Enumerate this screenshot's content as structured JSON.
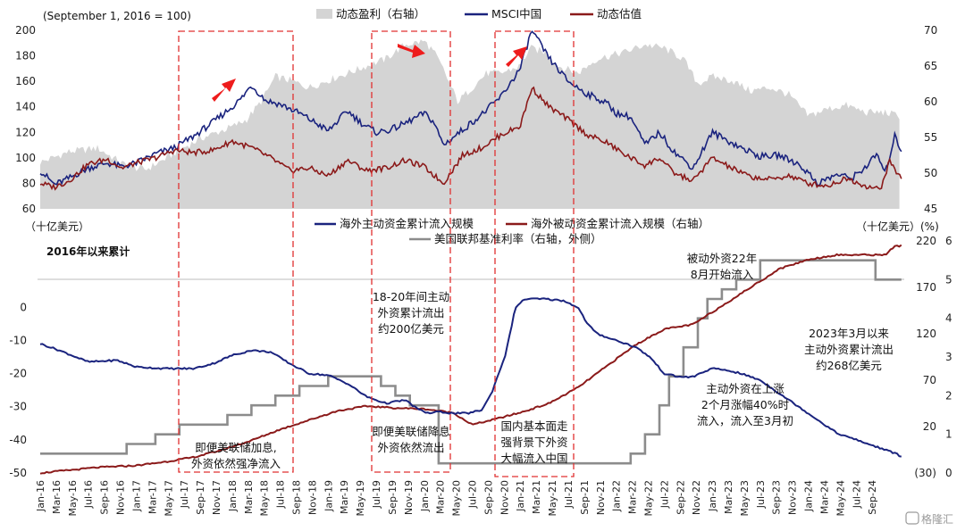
{
  "chart_data": [
    {
      "type": "line",
      "note_label": "(September 1, 2016 = 100)",
      "legend_placement": "top",
      "left_axis": {
        "ylim": [
          60,
          200
        ],
        "ticks": [
          60,
          80,
          100,
          120,
          140,
          160,
          180,
          200
        ]
      },
      "right_axis": {
        "ylim": [
          45,
          70
        ],
        "ticks": [
          45,
          50,
          55,
          60,
          65,
          70
        ]
      },
      "series": [
        {
          "name": "动态盈利（右轴）",
          "kind": "area",
          "axis": "right",
          "color": "#d4d4d4",
          "x": [
            2016.0,
            2016.3,
            2016.6,
            2016.9,
            2017.1,
            2017.3,
            2017.55,
            2017.7,
            2017.9,
            2018.0,
            2018.15,
            2018.3,
            2018.45,
            2018.6,
            2018.8,
            2019.0,
            2019.2,
            2019.4,
            2019.6,
            2019.8,
            2020.0,
            2020.1,
            2020.2,
            2020.35,
            2020.5,
            2020.65,
            2020.8,
            2021.0,
            2021.1,
            2021.25,
            2021.4,
            2021.6,
            2021.8,
            2021.95,
            2022.1,
            2022.3,
            2022.5,
            2022.7,
            2022.85,
            2023.0,
            2023.2,
            2023.4,
            2023.6,
            2023.8,
            2024.0,
            2024.2,
            2024.4,
            2024.6,
            2024.8,
            2024.95
          ],
          "values": [
            51.5,
            53,
            53.5,
            51,
            50.5,
            52,
            54,
            55,
            56,
            56.5,
            57.5,
            60,
            63.5,
            63,
            62,
            63,
            64,
            65,
            66,
            68,
            68.5,
            67,
            64.5,
            60,
            62,
            64,
            64,
            65,
            67.5,
            67,
            65,
            64,
            66,
            66.5,
            67,
            68,
            67.5,
            66,
            62.5,
            63.5,
            63,
            61.5,
            62,
            61,
            58,
            59,
            59.5,
            58.5,
            58.5,
            58
          ]
        },
        {
          "name": "MSCI中国",
          "kind": "line",
          "axis": "left",
          "color": "#1a237e",
          "x": [
            2016.0,
            2016.15,
            2016.3,
            2016.5,
            2016.7,
            2016.85,
            2017.0,
            2017.2,
            2017.4,
            2017.6,
            2017.8,
            2018.0,
            2018.1,
            2018.2,
            2018.35,
            2018.5,
            2018.7,
            2018.9,
            2019.0,
            2019.2,
            2019.35,
            2019.5,
            2019.65,
            2019.8,
            2020.0,
            2020.1,
            2020.2,
            2020.4,
            2020.6,
            2020.8,
            2021.0,
            2021.12,
            2021.3,
            2021.5,
            2021.7,
            2021.9,
            2022.0,
            2022.15,
            2022.3,
            2022.45,
            2022.6,
            2022.8,
            2023.0,
            2023.1,
            2023.3,
            2023.5,
            2023.7,
            2023.9,
            2024.0,
            2024.1,
            2024.3,
            2024.45,
            2024.6,
            2024.72,
            2024.8,
            2024.9,
            2024.97
          ],
          "values": [
            90,
            79,
            84,
            92,
            96,
            93,
            96,
            103,
            108,
            117,
            128,
            140,
            147,
            157,
            145,
            142,
            135,
            126,
            121,
            137,
            127,
            120,
            122,
            127,
            135,
            128,
            110,
            122,
            134,
            148,
            170,
            200,
            178,
            160,
            150,
            143,
            135,
            132,
            110,
            120,
            105,
            92,
            120,
            116,
            108,
            101,
            102,
            95,
            88,
            80,
            87,
            84,
            93,
            103,
            87,
            117,
            106
          ]
        },
        {
          "name": "动态估值",
          "kind": "line",
          "axis": "left",
          "color": "#8b1a1a",
          "x": [
            2016.0,
            2016.15,
            2016.3,
            2016.5,
            2016.7,
            2016.85,
            2017.0,
            2017.2,
            2017.4,
            2017.6,
            2017.8,
            2018.0,
            2018.2,
            2018.4,
            2018.6,
            2018.8,
            2019.0,
            2019.2,
            2019.4,
            2019.6,
            2019.8,
            2020.0,
            2020.2,
            2020.4,
            2020.6,
            2020.8,
            2021.0,
            2021.12,
            2021.3,
            2021.5,
            2021.7,
            2021.9,
            2022.1,
            2022.3,
            2022.45,
            2022.6,
            2022.8,
            2023.0,
            2023.2,
            2023.4,
            2023.6,
            2023.8,
            2024.0,
            2024.2,
            2024.4,
            2024.6,
            2024.75,
            2024.85,
            2024.92,
            2024.97
          ],
          "values": [
            80,
            77,
            82,
            95,
            99,
            92,
            96,
            100,
            106,
            104,
            106,
            113,
            108,
            100,
            90,
            92,
            86,
            98,
            90,
            92,
            98,
            93,
            80,
            102,
            108,
            118,
            125,
            155,
            140,
            130,
            118,
            112,
            102,
            94,
            100,
            88,
            82,
            100,
            92,
            85,
            83,
            86,
            80,
            78,
            84,
            78,
            75,
            98,
            88,
            85
          ]
        }
      ]
    },
    {
      "type": "line",
      "title": "2016年以来累计",
      "left_axis": {
        "unit": "（十亿美元）",
        "ylim": [
          -50,
          20
        ],
        "ticks": [
          -50,
          -40,
          -30,
          -20,
          -10,
          0
        ]
      },
      "right_axis_1": {
        "unit": "（十亿美元）",
        "ylim": [
          -30,
          220
        ],
        "ticks": [
          -30,
          20,
          70,
          120,
          170,
          220
        ],
        "tick_labels": [
          "(30)",
          "20",
          "70",
          "120",
          "170",
          "220"
        ]
      },
      "right_axis_2": {
        "unit": "(%)",
        "ylim": [
          0,
          6
        ],
        "ticks": [
          0,
          1,
          2,
          3,
          4,
          5,
          6
        ]
      },
      "series": [
        {
          "name": "海外主动资金累计流入规模",
          "axis": "left",
          "color": "#1a237e",
          "x": [
            2016.0,
            2016.2,
            2016.5,
            2016.8,
            2017.0,
            2017.3,
            2017.6,
            2017.8,
            2018.0,
            2018.2,
            2018.4,
            2018.6,
            2018.8,
            2019.0,
            2019.2,
            2019.4,
            2019.6,
            2019.8,
            2019.95,
            2020.05,
            2020.15,
            2020.3,
            2020.45,
            2020.6,
            2020.7,
            2020.85,
            2020.95,
            2021.05,
            2021.25,
            2021.45,
            2021.6,
            2021.7,
            2021.8,
            2021.9,
            2022.0,
            2022.2,
            2022.35,
            2022.5,
            2022.65,
            2022.8,
            2022.95,
            2023.0,
            2023.15,
            2023.3,
            2023.5,
            2023.7,
            2023.9,
            2024.1,
            2024.3,
            2024.5,
            2024.7,
            2024.9,
            2024.97
          ],
          "values": [
            -11,
            -13,
            -16.5,
            -16,
            -18,
            -18.5,
            -18.5,
            -17,
            -14.5,
            -13,
            -13.5,
            -17,
            -20,
            -20.5,
            -23,
            -27,
            -29,
            -28,
            -31,
            -32,
            -31.5,
            -32,
            -32,
            -31,
            -26,
            -14,
            0,
            2.5,
            2.5,
            2,
            0,
            -5,
            -8,
            -9,
            -10,
            -12,
            -15,
            -20,
            -21,
            -21,
            -19,
            -18.5,
            -19,
            -20,
            -22,
            -26,
            -30,
            -34,
            -38,
            -40,
            -42,
            -44,
            -45
          ]
        },
        {
          "name": "海外被动资金累计流入规模（右轴）",
          "axis": "right_1",
          "color": "#8b1a1a",
          "x": [
            2016.0,
            2016.3,
            2016.6,
            2017.0,
            2017.3,
            2017.6,
            2017.9,
            2018.2,
            2018.5,
            2018.8,
            2019.1,
            2019.4,
            2019.7,
            2020.0,
            2020.3,
            2020.5,
            2020.7,
            2021.0,
            2021.3,
            2021.6,
            2021.9,
            2022.2,
            2022.5,
            2022.8,
            2023.1,
            2023.4,
            2023.7,
            2024.0,
            2024.3,
            2024.6,
            2024.8,
            2024.9,
            2024.97
          ],
          "values": [
            -30,
            -27,
            -24,
            -22,
            -18,
            -13,
            -5,
            5,
            17,
            27,
            37,
            42,
            40,
            39,
            35,
            22,
            27,
            35,
            45,
            62,
            85,
            108,
            125,
            130,
            150,
            170,
            190,
            200,
            205,
            205,
            205,
            214,
            215
          ]
        },
        {
          "name": "美国联邦基准利率（右轴，外侧）",
          "axis": "right_2",
          "color": "#8c8c8c",
          "step": true,
          "x": [
            2016.0,
            2016.9,
            2017.2,
            2017.45,
            2017.95,
            2018.2,
            2018.45,
            2018.7,
            2019.0,
            2019.55,
            2019.7,
            2019.85,
            2020.15,
            2020.25,
            2022.15,
            2022.3,
            2022.45,
            2022.55,
            2022.7,
            2022.85,
            2022.95,
            2023.1,
            2023.25,
            2023.5,
            2024.7,
            2024.8,
            2024.97
          ],
          "values": [
            0.5,
            0.75,
            1.0,
            1.25,
            1.5,
            1.75,
            2.0,
            2.25,
            2.5,
            2.25,
            2.0,
            1.75,
            0.25,
            0.25,
            0.5,
            1.0,
            1.75,
            2.5,
            3.25,
            4.0,
            4.5,
            4.75,
            5.0,
            5.5,
            5.0,
            5.0,
            5.0
          ]
        }
      ],
      "x_tick_labels": [
        "Jan-16",
        "Mar-16",
        "May-16",
        "Jul-16",
        "Sep-16",
        "Nov-16",
        "Jan-17",
        "Mar-17",
        "May-17",
        "Jul-17",
        "Sep-17",
        "Nov-17",
        "Jan-18",
        "Mar-18",
        "May-18",
        "Jul-18",
        "Sep-18",
        "Nov-18",
        "Jan-19",
        "Mar-19",
        "May-19",
        "Jul-19",
        "Sep-19",
        "Nov-19",
        "Jan-20",
        "Mar-20",
        "May-20",
        "Jul-20",
        "Sep-20",
        "Nov-20",
        "Jan-21",
        "Mar-21",
        "May-21",
        "Jul-21",
        "Sep-21",
        "Nov-21",
        "Jan-22",
        "Mar-22",
        "May-22",
        "Jul-22",
        "Sep-22",
        "Nov-22",
        "Jan-23",
        "Mar-23",
        "May-23",
        "Jul-23",
        "Sep-23",
        "Nov-23",
        "Jan-24",
        "Mar-24",
        "May-24",
        "Jul-24",
        "Sep-24"
      ],
      "annotations": [
        {
          "text": [
            "即便美联储加息,",
            "外资依然强净流入"
          ]
        },
        {
          "text": [
            "18-20年间主动",
            "外资累计流出",
            "约200亿美元"
          ]
        },
        {
          "text": [
            "即便美联储降息",
            "外资依然流出"
          ]
        },
        {
          "text": [
            "国内基本面走",
            "强背景下外资",
            "大幅流入中国"
          ]
        },
        {
          "text": [
            "被动外资22年",
            "8月开始流入"
          ]
        },
        {
          "text": [
            "2023年3月以来",
            "主动外资累计流出",
            "约268亿美元"
          ]
        },
        {
          "text": [
            "主动外资在上涨",
            "2个月涨幅40%时",
            "流入，流入至3月初"
          ]
        }
      ]
    }
  ],
  "watermark": "格隆汇",
  "colors": {
    "highlight_box": "#e03030",
    "arrow": "#ee1c1c"
  }
}
